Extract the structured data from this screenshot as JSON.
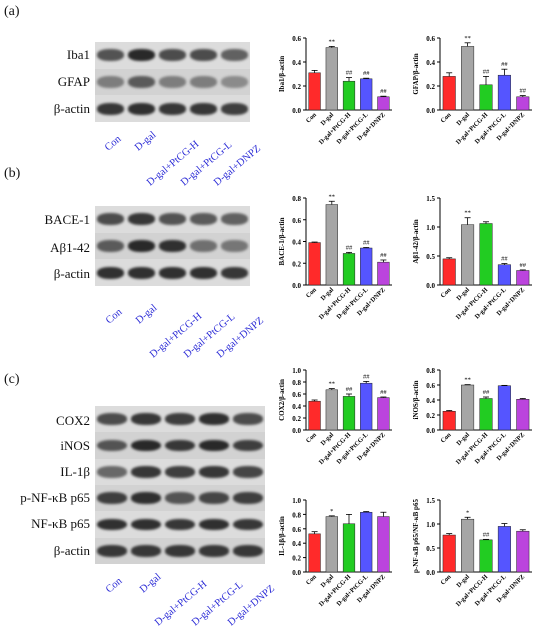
{
  "colors": {
    "Con": "#ff2a2a",
    "D-gal": "#a6a6a6",
    "PtCG-H": "#22cc22",
    "PtCG-L": "#5555ff",
    "DNPZ": "#bb44dd",
    "lane_text": "#2b2bd6"
  },
  "groups": [
    "Con",
    "D-gal",
    "D-gal+PtCG-H",
    "D-gal+PtCG-L",
    "D-gal+DNPZ"
  ],
  "panels": [
    {
      "label": "(a)",
      "blot_labels": [
        "Iba1",
        "GFAP",
        "β-actin"
      ],
      "lane_labels": [
        "Con",
        "D-gal",
        "D-gal+PtCG-H",
        "D-gal+PtCG-L",
        "D-gal+DNPZ"
      ]
    },
    {
      "label": "(b)",
      "blot_labels": [
        "BACE-1",
        "Aβ1-42",
        "β-actin"
      ],
      "lane_labels": [
        "Con",
        "D-gal",
        "D-gal+PtCG-H",
        "D-gal+PtCG-L",
        "D-gal+DNPZ"
      ]
    },
    {
      "label": "(c)",
      "blot_labels": [
        "COX2",
        "iNOS",
        "IL-1β",
        "p-NF-κB p65",
        "NF-κB p65",
        "β-actin"
      ],
      "lane_labels": [
        "Con",
        "D-gal",
        "D-gal+PtCG-H",
        "D-gal+PtCG-L",
        "D-gal+DNPZ"
      ]
    }
  ],
  "chart_data": [
    {
      "type": "bar",
      "ylabel": "Iba1/β-actin",
      "ylim": [
        0,
        0.6
      ],
      "yticks": [
        "0.0",
        "0.2",
        "0.4",
        "0.6"
      ],
      "categories": [
        "Con",
        "D-gal",
        "D-gal+PtCG-H",
        "D-gal+PtCG-L",
        "D-gal+DNPZ"
      ],
      "values": [
        0.31,
        0.52,
        0.24,
        0.26,
        0.11
      ],
      "errors": [
        0.02,
        0.01,
        0.03,
        0.005,
        0.005
      ],
      "annotations": [
        "",
        "**",
        "##",
        "##",
        "##"
      ]
    },
    {
      "type": "bar",
      "ylabel": "GFAP/β-actin",
      "ylim": [
        0,
        0.6
      ],
      "yticks": [
        "0.0",
        "0.2",
        "0.4",
        "0.6"
      ],
      "categories": [
        "Con",
        "D-gal",
        "D-gal+PtCG-H",
        "D-gal+PtCG-L",
        "D-gal+DNPZ"
      ],
      "values": [
        0.28,
        0.53,
        0.21,
        0.29,
        0.11
      ],
      "errors": [
        0.03,
        0.03,
        0.07,
        0.05,
        0.01
      ],
      "annotations": [
        "",
        "**",
        "##",
        "##",
        "##"
      ]
    },
    {
      "type": "bar",
      "ylabel": "BACE-1/β-actin",
      "ylim": [
        0,
        0.8
      ],
      "yticks": [
        "0.0",
        "0.2",
        "0.4",
        "0.6",
        "0.8"
      ],
      "categories": [
        "Con",
        "D-gal",
        "D-gal+PtCG-H",
        "D-gal+PtCG-L",
        "D-gal+DNPZ"
      ],
      "values": [
        0.39,
        0.74,
        0.29,
        0.34,
        0.21
      ],
      "errors": [
        0.005,
        0.03,
        0.01,
        0.005,
        0.02
      ],
      "annotations": [
        "",
        "**",
        "##",
        "##",
        "##"
      ]
    },
    {
      "type": "bar",
      "ylabel": "Aβ1-42/β-actin",
      "ylim": [
        0,
        1.5
      ],
      "yticks": [
        "0.0",
        "0.5",
        "1.0",
        "1.5"
      ],
      "categories": [
        "Con",
        "D-gal",
        "D-gal+PtCG-H",
        "D-gal+PtCG-L",
        "D-gal+DNPZ"
      ],
      "values": [
        0.45,
        1.04,
        1.06,
        0.35,
        0.25
      ],
      "errors": [
        0.02,
        0.12,
        0.03,
        0.02,
        0.01
      ],
      "annotations": [
        "",
        "**",
        "",
        "##",
        "##"
      ]
    },
    {
      "type": "bar",
      "ylabel": "COX2/β-actin",
      "ylim": [
        0,
        1.0
      ],
      "yticks": [
        "0.0",
        "0.2",
        "0.4",
        "0.6",
        "0.8",
        "1.0"
      ],
      "categories": [
        "Con",
        "D-gal",
        "D-gal+PtCG-H",
        "D-gal+PtCG-L",
        "D-gal+DNPZ"
      ],
      "values": [
        0.48,
        0.67,
        0.56,
        0.78,
        0.54
      ],
      "errors": [
        0.02,
        0.02,
        0.04,
        0.03,
        0.01
      ],
      "annotations": [
        "",
        "**",
        "##",
        "##",
        "##"
      ]
    },
    {
      "type": "bar",
      "ylabel": "iNOS/β-actin",
      "ylim": [
        0,
        0.8
      ],
      "yticks": [
        "0.0",
        "0.2",
        "0.4",
        "0.6",
        "0.8"
      ],
      "categories": [
        "Con",
        "D-gal",
        "D-gal+PtCG-H",
        "D-gal+PtCG-L",
        "D-gal+DNPZ"
      ],
      "values": [
        0.25,
        0.6,
        0.42,
        0.59,
        0.41
      ],
      "errors": [
        0.01,
        0.005,
        0.02,
        0.005,
        0.01
      ],
      "annotations": [
        "",
        "**",
        "##",
        "",
        ""
      ]
    },
    {
      "type": "bar",
      "ylabel": "IL-1β/β-actin",
      "ylim": [
        0,
        1.0
      ],
      "yticks": [
        "0.0",
        "0.2",
        "0.4",
        "0.6",
        "0.8",
        "1.0"
      ],
      "categories": [
        "Con",
        "D-gal",
        "D-gal+PtCG-H",
        "D-gal+PtCG-L",
        "D-gal+DNPZ"
      ],
      "values": [
        0.53,
        0.77,
        0.67,
        0.83,
        0.77
      ],
      "errors": [
        0.03,
        0.01,
        0.13,
        0.01,
        0.06
      ],
      "annotations": [
        "",
        "*",
        "",
        "",
        ""
      ]
    },
    {
      "type": "bar",
      "ylabel": "p-NF-κB p65/NF-κB p65",
      "ylim": [
        0,
        1.5
      ],
      "yticks": [
        "0.0",
        "0.5",
        "1.0",
        "1.5"
      ],
      "categories": [
        "Con",
        "D-gal",
        "D-gal+PtCG-H",
        "D-gal+PtCG-L",
        "D-gal+DNPZ"
      ],
      "values": [
        0.77,
        1.1,
        0.67,
        0.95,
        0.85
      ],
      "errors": [
        0.03,
        0.04,
        0.01,
        0.06,
        0.03
      ],
      "annotations": [
        "",
        "*",
        "##",
        "",
        ""
      ]
    }
  ]
}
